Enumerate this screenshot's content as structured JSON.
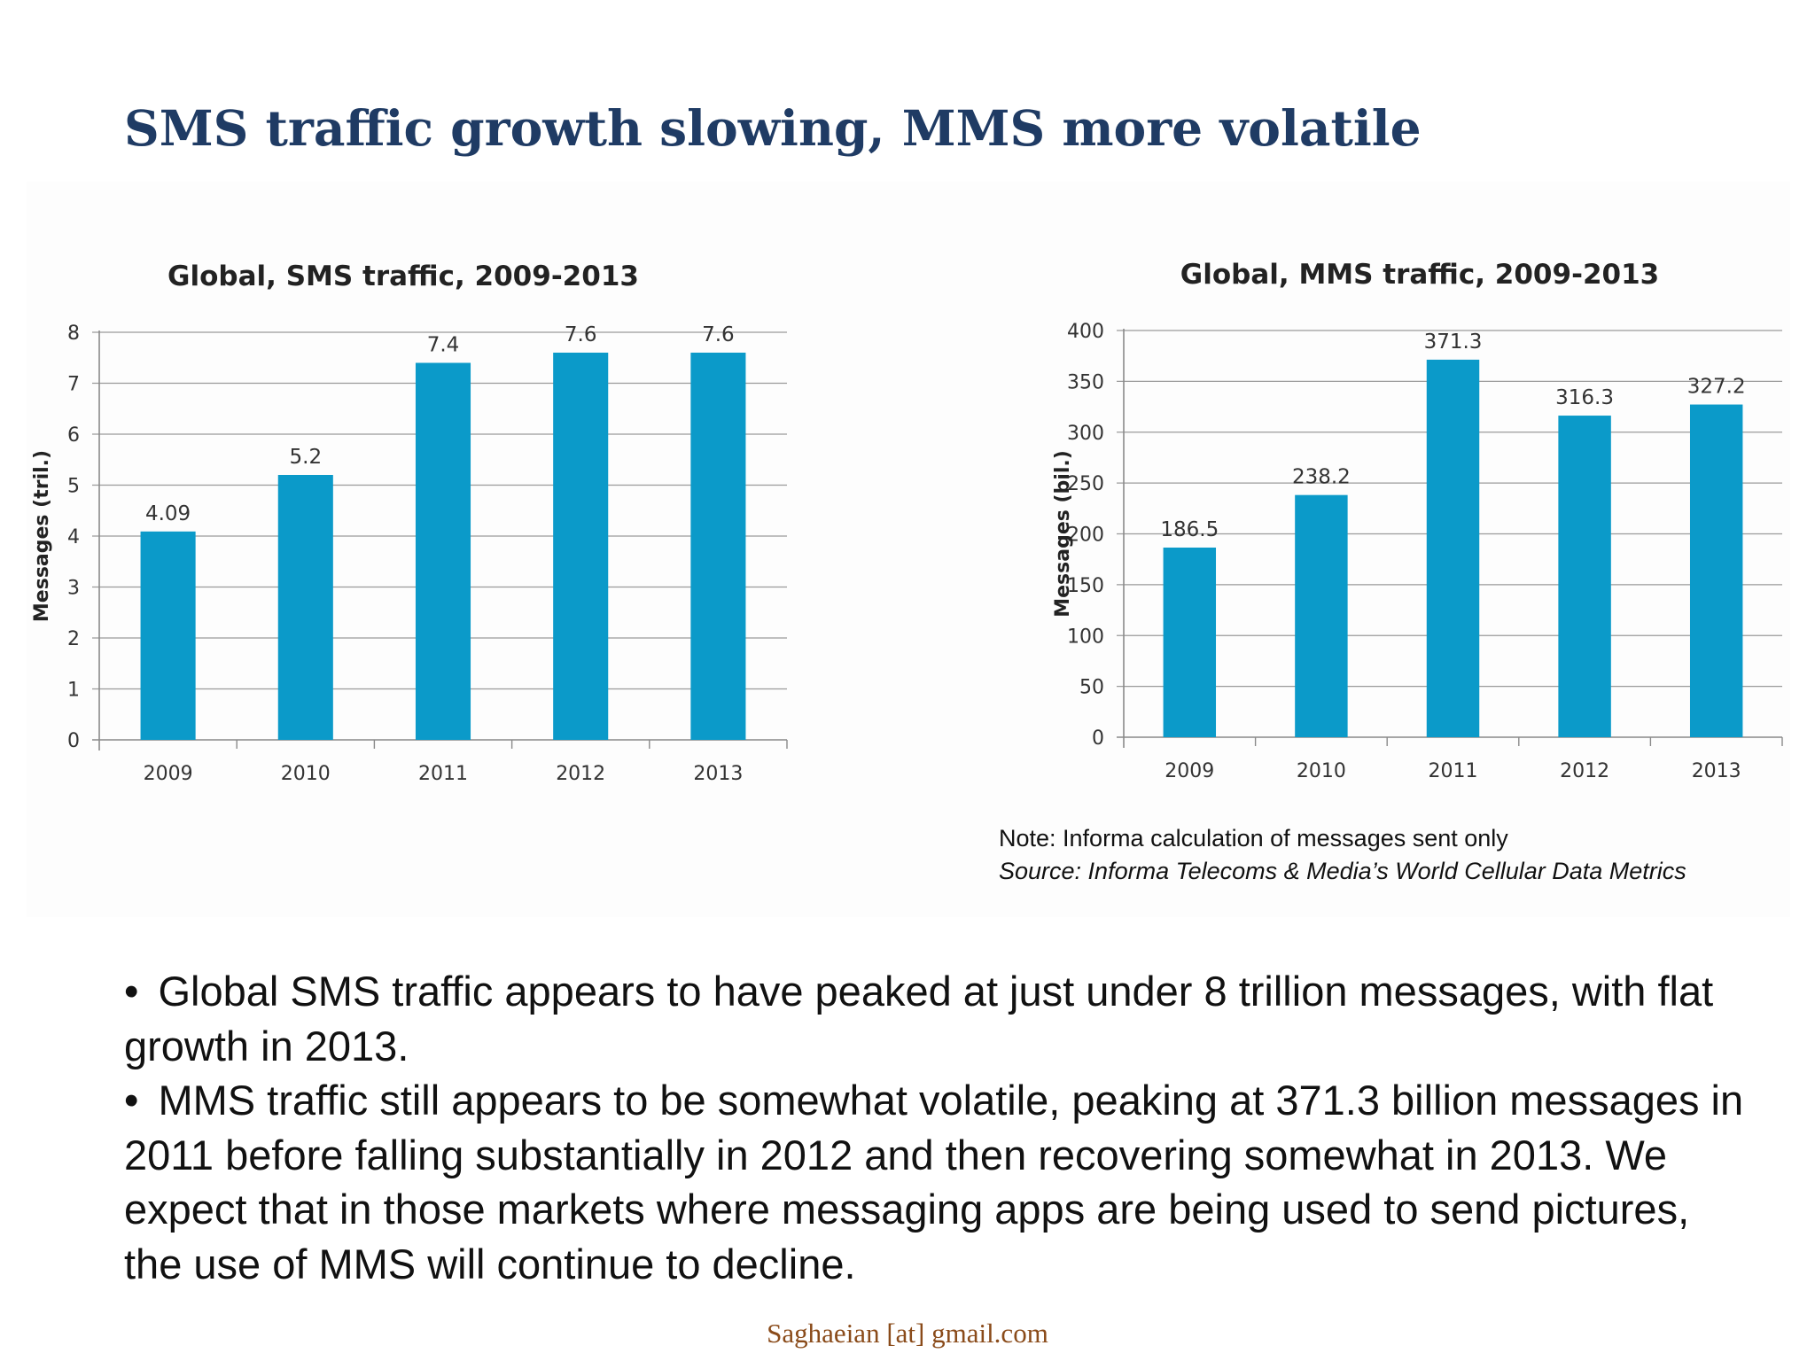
{
  "slide": {
    "title": "SMS traffic growth slowing, MMS more volatile",
    "bullets": [
      "Global SMS traffic appears to have peaked at just under 8 trillion messages, with flat growth in 2013.",
      "MMS traffic still appears to be somewhat volatile, peaking at 371.3 billion messages in 2011 before falling substantially in 2012 and then recovering somewhat in 2013. We expect that in those markets where messaging apps are being used to send pictures, the use of MMS will continue to decline."
    ],
    "bullet_symbol": "•",
    "note": "Note: Informa calculation of messages sent only",
    "source": "Source: Informa Telecoms & Media’s World Cellular Data Metrics",
    "footer": "Saghaeian [at] gmail.com",
    "colors": {
      "title": "#1f3b64",
      "bar": "#0b9ac9",
      "footer": "#8a4b1a"
    }
  },
  "chart_data": [
    {
      "type": "bar",
      "title": "Global, SMS traffic, 2009-2013",
      "ylabel": "Messages (tril.)",
      "xlabel": "",
      "categories": [
        "2009",
        "2010",
        "2011",
        "2012",
        "2013"
      ],
      "values": [
        4.09,
        5.2,
        7.4,
        7.6,
        7.6
      ],
      "data_labels": [
        "4.09",
        "5.2",
        "7.4",
        "7.6",
        "7.6"
      ],
      "ylim": [
        0,
        8
      ],
      "yticks": [
        0,
        1,
        2,
        3,
        4,
        5,
        6,
        7,
        8
      ],
      "grid": true,
      "legend": false,
      "color": "#0b9ac9"
    },
    {
      "type": "bar",
      "title": "Global, MMS traffic, 2009-2013",
      "ylabel": "Messages (bil.)",
      "xlabel": "",
      "categories": [
        "2009",
        "2010",
        "2011",
        "2012",
        "2013"
      ],
      "values": [
        186.5,
        238.2,
        371.3,
        316.3,
        327.2
      ],
      "data_labels": [
        "186.5",
        "238.2",
        "371.3",
        "316.3",
        "327.2"
      ],
      "ylim": [
        0,
        400
      ],
      "yticks": [
        0,
        50,
        100,
        150,
        200,
        250,
        300,
        350,
        400
      ],
      "grid": true,
      "legend": false,
      "color": "#0b9ac9"
    }
  ]
}
